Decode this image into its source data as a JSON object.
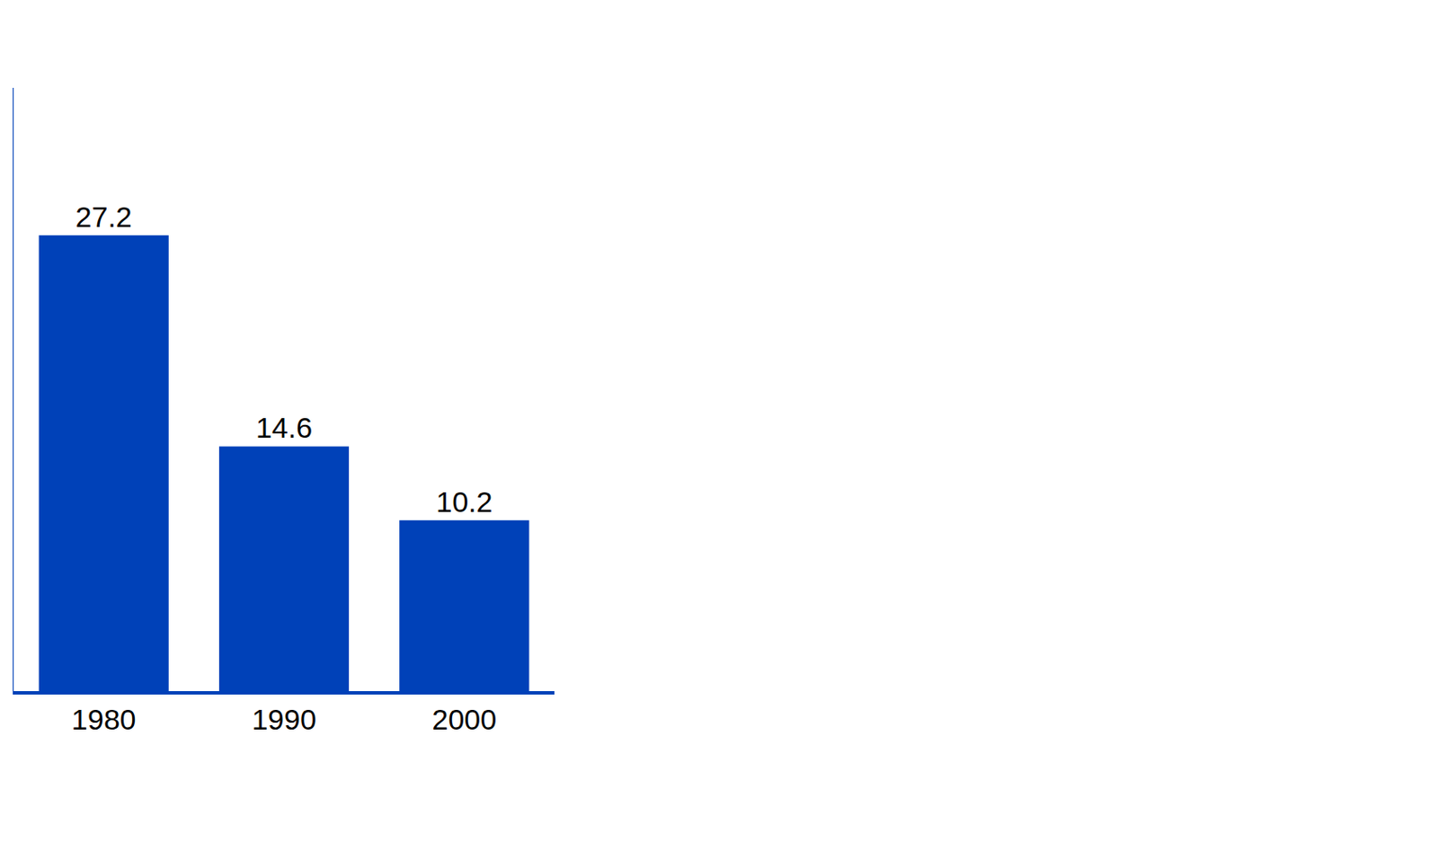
{
  "chart_data": {
    "type": "bar",
    "categories": [
      "1980",
      "1990",
      "2000"
    ],
    "values": [
      27.2,
      14.6,
      10.2
    ],
    "color": "#0041b8",
    "ylim": [
      0,
      36
    ],
    "yticks": [],
    "grid": false,
    "data_labels": true,
    "tick_labels": "x"
  }
}
